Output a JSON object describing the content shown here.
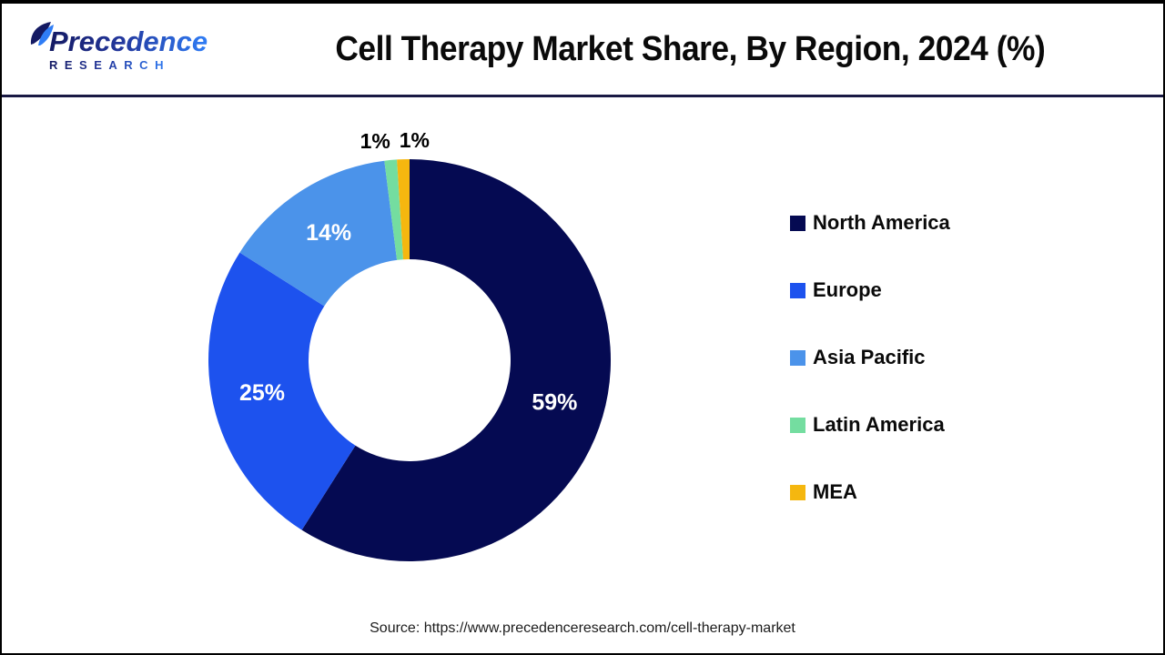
{
  "logo": {
    "line1": "Precedence",
    "line2": "RESEARCH",
    "colors": {
      "navy": "#141a63",
      "blue": "#2f7df6"
    }
  },
  "header": {
    "title": "Cell Therapy Market Share, By Region, 2024 (%)"
  },
  "chart_data": {
    "type": "pie",
    "subtype": "donut",
    "title": "Cell Therapy Market Share, By Region, 2024 (%)",
    "unit": "%",
    "categories": [
      "North America",
      "Europe",
      "Asia Pacific",
      "Latin America",
      "MEA"
    ],
    "values": [
      59,
      25,
      14,
      1,
      1
    ],
    "labels": [
      "59%",
      "25%",
      "14%",
      "1%",
      "1%"
    ],
    "colors": [
      "#050a52",
      "#1d52ee",
      "#4b93ea",
      "#74dda0",
      "#f5b70f"
    ],
    "start_angle_deg": 0,
    "direction": "clockwise",
    "donut_hole_ratio": 0.5,
    "legend_position": "right",
    "label_color_inside": "#ffffff",
    "label_color_outside": "#000000"
  },
  "source": {
    "text": "Source: https://www.precedenceresearch.com/cell-therapy-market"
  }
}
